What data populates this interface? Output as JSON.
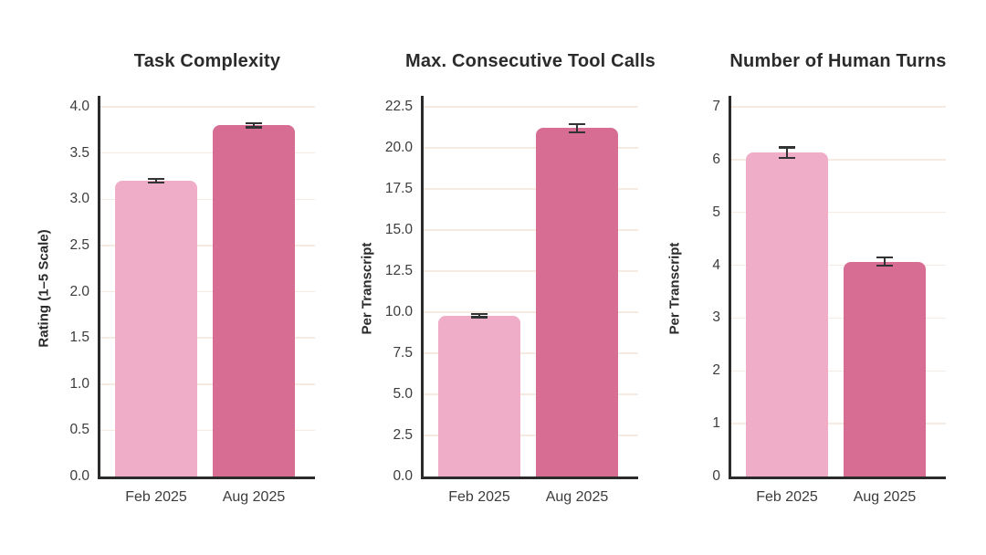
{
  "figure": {
    "background": "#ffffff",
    "axis_color": "#2b2b2b",
    "grid_color": "#f5ebe2",
    "error_bar_color": "#333333",
    "text_color": "#2b2b2b",
    "tick_text_color": "#3c3c3c"
  },
  "chart_data": [
    {
      "type": "bar",
      "title": "Task Complexity",
      "ylabel": "Rating (1–5 Scale)",
      "xlabel": "",
      "categories": [
        "Feb 2025",
        "Aug 2025"
      ],
      "values": [
        3.2,
        3.8
      ],
      "errors": [
        0.02,
        0.02
      ],
      "bar_colors": [
        "#efadc8",
        "#d76d92"
      ],
      "yticks": [
        0.0,
        0.5,
        1.0,
        1.5,
        2.0,
        2.5,
        3.0,
        3.5,
        4.0
      ],
      "ytick_labels": [
        "0.0",
        "0.5",
        "1.0",
        "1.5",
        "2.0",
        "2.5",
        "3.0",
        "3.5",
        "4.0"
      ],
      "ylim": [
        0,
        4.2
      ],
      "grid": true,
      "legend_position": "none"
    },
    {
      "type": "bar",
      "title": "Max. Consecutive Tool Calls",
      "ylabel": "Per Transcript",
      "xlabel": "",
      "categories": [
        "Feb 2025",
        "Aug 2025"
      ],
      "values": [
        9.8,
        21.2
      ],
      "errors": [
        0.1,
        0.25
      ],
      "bar_colors": [
        "#efadc8",
        "#d76d92"
      ],
      "yticks": [
        0.0,
        2.5,
        5.0,
        7.5,
        10.0,
        12.5,
        15.0,
        17.5,
        20.0,
        22.5
      ],
      "ytick_labels": [
        "0.0",
        "2.5",
        "5.0",
        "7.5",
        "10.0",
        "12.5",
        "15.0",
        "17.5",
        "20.0",
        "22.5"
      ],
      "ylim": [
        0,
        23.2
      ],
      "grid": true,
      "legend_position": "none"
    },
    {
      "type": "bar",
      "title": "Number of Human Turns",
      "ylabel": "Per Transcript",
      "xlabel": "",
      "categories": [
        "Feb 2025",
        "Aug 2025"
      ],
      "values": [
        6.13,
        4.07
      ],
      "errors": [
        0.1,
        0.08
      ],
      "bar_colors": [
        "#efadc8",
        "#d76d92"
      ],
      "yticks": [
        0,
        1,
        2,
        3,
        4,
        5,
        6,
        7
      ],
      "ytick_labels": [
        "0",
        "1",
        "2",
        "3",
        "4",
        "5",
        "6",
        "7"
      ],
      "ylim": [
        0,
        7.2
      ],
      "grid": true,
      "legend_position": "none"
    }
  ]
}
